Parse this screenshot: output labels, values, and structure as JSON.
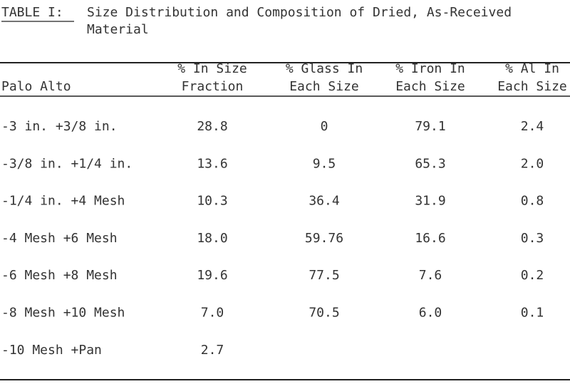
{
  "header": {
    "label": "TABLE I:",
    "title_lines": [
      "Size Distribution and Composition of Dried, As-Received",
      "Material"
    ]
  },
  "table": {
    "columns": [
      [
        "Palo Alto"
      ],
      [
        "% In Size",
        "Fraction"
      ],
      [
        "% Glass In",
        "Each Size"
      ],
      [
        "% Iron In",
        "Each Size"
      ],
      [
        "% Al In",
        "Each Size"
      ]
    ],
    "rows": [
      [
        "-3 in. +3/8 in.",
        "28.8",
        "0",
        "79.1",
        "2.4"
      ],
      [
        "-3/8 in. +1/4 in.",
        "13.6",
        "9.5",
        "65.3",
        "2.0"
      ],
      [
        "-1/4 in. +4 Mesh",
        "10.3",
        "36.4",
        "31.9",
        "0.8"
      ],
      [
        "-4 Mesh +6 Mesh",
        "18.0",
        "59.76",
        "16.6",
        "0.3"
      ],
      [
        "-6 Mesh +8 Mesh",
        "19.6",
        "77.5",
        "7.6",
        "0.2"
      ],
      [
        "-8 Mesh +10 Mesh",
        "7.0",
        "70.5",
        "6.0",
        "0.1"
      ],
      [
        "-10 Mesh +Pan",
        "2.7"
      ]
    ]
  }
}
